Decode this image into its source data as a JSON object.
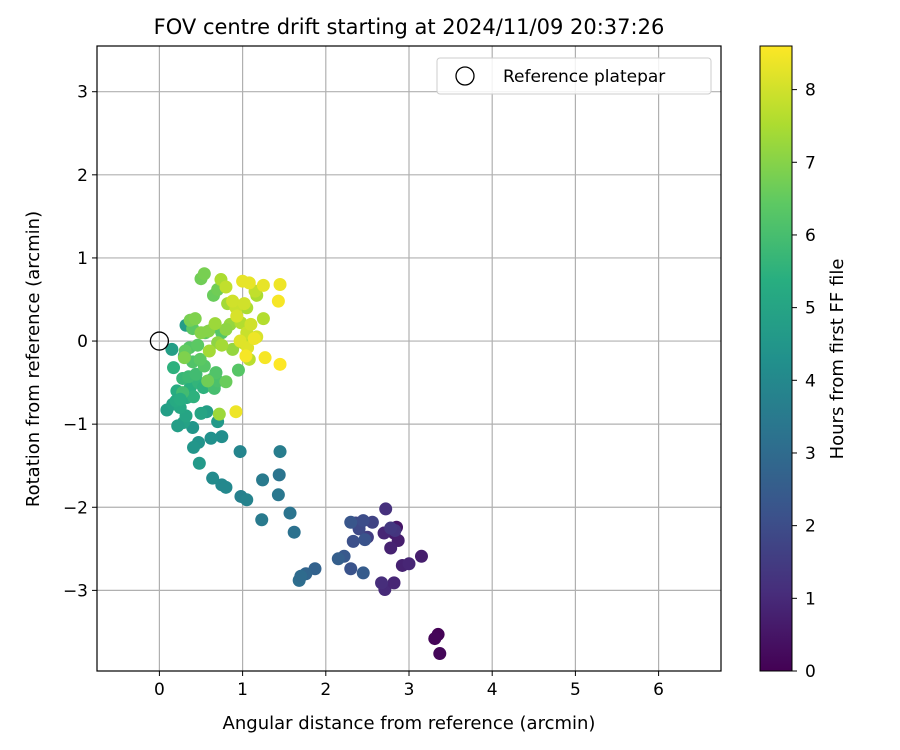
{
  "chart_data": {
    "type": "scatter",
    "title": "FOV centre drift starting at 2024/11/09 20:37:26",
    "xlabel": "Angular distance from reference (arcmin)",
    "ylabel": "Rotation from reference (arcmin)",
    "xlim": [
      -0.75,
      6.75
    ],
    "ylim": [
      -3.97,
      3.55
    ],
    "xticks": [
      0,
      1,
      2,
      3,
      4,
      5,
      6
    ],
    "yticks": [
      3,
      2,
      1,
      0,
      -1,
      -2,
      -3
    ],
    "ytick_labels": [
      "3",
      "2",
      "1",
      "0",
      "−1",
      "−2",
      "−3"
    ],
    "grid": true,
    "legend": {
      "placement": "top-right",
      "label": "Reference platepar"
    },
    "reference_point": {
      "x": 0,
      "y": 0
    },
    "colorbar": {
      "label": "Hours from first FF file",
      "range": [
        0,
        8.6
      ],
      "ticks": [
        0,
        1,
        2,
        3,
        4,
        5,
        6,
        7,
        8
      ],
      "colormap": "viridis"
    },
    "points": [
      [
        3.35,
        -3.53,
        0.05
      ],
      [
        3.31,
        -3.58,
        0.1
      ],
      [
        3.37,
        -3.76,
        0.15
      ],
      [
        2.85,
        -2.24,
        0.5
      ],
      [
        2.82,
        -2.31,
        0.6
      ],
      [
        2.87,
        -2.4,
        0.7
      ],
      [
        2.78,
        -2.49,
        0.8
      ],
      [
        2.7,
        -2.31,
        0.9
      ],
      [
        2.92,
        -2.7,
        0.8
      ],
      [
        3.0,
        -2.68,
        0.9
      ],
      [
        3.15,
        -2.59,
        0.7
      ],
      [
        2.71,
        -2.99,
        1.0
      ],
      [
        2.82,
        -2.91,
        0.9
      ],
      [
        2.67,
        -2.91,
        1.1
      ],
      [
        2.72,
        -2.02,
        1.2
      ],
      [
        2.83,
        -2.28,
        1.3
      ],
      [
        2.78,
        -2.25,
        1.4
      ],
      [
        2.5,
        -2.36,
        1.5
      ],
      [
        2.56,
        -2.18,
        1.7
      ],
      [
        2.36,
        -2.19,
        1.8
      ],
      [
        2.4,
        -2.26,
        1.9
      ],
      [
        2.45,
        -2.16,
        2.0
      ],
      [
        2.33,
        -2.41,
        2.1
      ],
      [
        2.47,
        -2.39,
        2.2
      ],
      [
        2.3,
        -2.18,
        2.3
      ],
      [
        2.22,
        -2.59,
        2.4
      ],
      [
        2.3,
        -2.74,
        2.2
      ],
      [
        2.45,
        -2.79,
        2.5
      ],
      [
        2.15,
        -2.62,
        2.6
      ],
      [
        1.87,
        -2.74,
        2.7
      ],
      [
        1.76,
        -2.8,
        2.8
      ],
      [
        1.68,
        -2.88,
        3.1
      ],
      [
        1.7,
        -2.83,
        3.0
      ],
      [
        1.62,
        -2.3,
        3.2
      ],
      [
        1.57,
        -2.07,
        3.3
      ],
      [
        1.43,
        -1.85,
        3.4
      ],
      [
        1.24,
        -1.67,
        3.5
      ],
      [
        1.44,
        -1.61,
        3.3
      ],
      [
        1.45,
        -1.33,
        3.6
      ],
      [
        1.23,
        -2.15,
        3.5
      ],
      [
        0.98,
        -1.87,
        3.7
      ],
      [
        1.05,
        -1.91,
        3.8
      ],
      [
        0.97,
        -1.33,
        3.9
      ],
      [
        0.75,
        -1.73,
        4.0
      ],
      [
        0.64,
        -1.65,
        4.1
      ],
      [
        0.8,
        -1.76,
        4.0
      ],
      [
        0.75,
        -1.15,
        4.2
      ],
      [
        0.62,
        -1.17,
        4.3
      ],
      [
        0.47,
        -1.22,
        4.4
      ],
      [
        0.41,
        -1.28,
        4.5
      ],
      [
        0.48,
        -1.47,
        4.6
      ],
      [
        0.4,
        -1.04,
        4.5
      ],
      [
        0.7,
        -0.97,
        4.6
      ],
      [
        0.57,
        -0.85,
        4.8
      ],
      [
        0.29,
        -0.98,
        4.9
      ],
      [
        0.22,
        -1.02,
        4.8
      ],
      [
        0.09,
        -0.83,
        4.8
      ],
      [
        0.16,
        -0.76,
        4.9
      ],
      [
        0.32,
        -0.9,
        5.0
      ],
      [
        0.5,
        -0.87,
        5.0
      ],
      [
        0.3,
        -0.18,
        4.7
      ],
      [
        0.32,
        0.19,
        4.7
      ],
      [
        0.15,
        -0.1,
        4.8
      ],
      [
        0.25,
        -0.8,
        5.1
      ],
      [
        0.33,
        -0.68,
        5.2
      ],
      [
        0.21,
        -0.6,
        5.3
      ],
      [
        0.37,
        -0.56,
        5.4
      ],
      [
        0.41,
        -0.67,
        5.5
      ],
      [
        0.47,
        -0.5,
        5.6
      ],
      [
        0.53,
        -0.56,
        5.5
      ],
      [
        0.28,
        -0.45,
        5.7
      ],
      [
        0.35,
        -0.43,
        5.8
      ],
      [
        0.17,
        -0.32,
        5.5
      ],
      [
        0.28,
        -0.62,
        5.9
      ],
      [
        0.66,
        -0.57,
        6.0
      ],
      [
        0.63,
        -0.46,
        6.0
      ],
      [
        0.44,
        -0.4,
        5.9
      ],
      [
        0.2,
        -0.72,
        5.2
      ],
      [
        0.25,
        -0.7,
        5.3
      ],
      [
        0.7,
        -0.48,
        6.1
      ],
      [
        0.68,
        -0.38,
        6.2
      ],
      [
        0.54,
        -0.3,
        6.3
      ],
      [
        0.4,
        -0.25,
        6.2
      ],
      [
        0.36,
        -0.08,
        6.3
      ],
      [
        0.46,
        -0.05,
        6.4
      ],
      [
        0.31,
        -0.12,
        6.5
      ],
      [
        0.49,
        -0.22,
        6.4
      ],
      [
        0.55,
        0.1,
        6.4
      ],
      [
        0.66,
        0.17,
        6.5
      ],
      [
        0.4,
        0.15,
        6.4
      ],
      [
        0.75,
        0.1,
        6.3
      ],
      [
        0.95,
        -0.35,
        6.3
      ],
      [
        0.8,
        -0.49,
        6.6
      ],
      [
        0.58,
        -0.48,
        6.7
      ],
      [
        0.65,
        0.55,
        6.6
      ],
      [
        0.7,
        0.62,
        6.7
      ],
      [
        0.5,
        0.75,
        6.7
      ],
      [
        0.54,
        0.81,
        6.8
      ],
      [
        0.37,
        0.25,
        6.8
      ],
      [
        0.43,
        0.27,
        6.9
      ],
      [
        0.3,
        -0.2,
        6.9
      ],
      [
        0.5,
        0.1,
        7.0
      ],
      [
        0.59,
        0.12,
        7.0
      ],
      [
        0.7,
        -0.02,
        7.1
      ],
      [
        0.85,
        0.2,
        7.2
      ],
      [
        0.8,
        0.14,
        7.1
      ],
      [
        0.88,
        -0.1,
        7.2
      ],
      [
        0.72,
        -0.88,
        7.3
      ],
      [
        0.67,
        0.21,
        7.3
      ],
      [
        0.6,
        -0.12,
        7.4
      ],
      [
        0.75,
        -0.05,
        7.4
      ],
      [
        0.82,
        0.45,
        7.4
      ],
      [
        0.74,
        0.74,
        7.5
      ],
      [
        1.17,
        0.55,
        7.5
      ],
      [
        1.05,
        0.4,
        7.5
      ],
      [
        1.25,
        0.27,
        7.6
      ],
      [
        0.98,
        0.22,
        7.6
      ],
      [
        1.08,
        -0.22,
        7.7
      ],
      [
        1.0,
        -0.02,
        7.7
      ],
      [
        1.15,
        0.6,
        7.8
      ],
      [
        0.8,
        0.65,
        7.8
      ],
      [
        0.92,
        0.4,
        7.9
      ],
      [
        1.05,
        0.1,
        7.9
      ],
      [
        0.88,
        0.48,
        8.0
      ],
      [
        1.02,
        0.45,
        8.0
      ],
      [
        1.1,
        0.2,
        8.0
      ],
      [
        0.93,
        0.3,
        8.1
      ],
      [
        1.17,
        0.05,
        8.1
      ],
      [
        0.97,
        0.0,
        8.2
      ],
      [
        1.06,
        -0.08,
        8.2
      ],
      [
        1.08,
        0.7,
        8.3
      ],
      [
        1.0,
        0.72,
        8.3
      ],
      [
        1.25,
        0.67,
        8.3
      ],
      [
        1.45,
        0.68,
        8.4
      ],
      [
        1.27,
        -0.2,
        8.5
      ],
      [
        1.45,
        -0.28,
        8.6
      ],
      [
        1.43,
        0.48,
        8.5
      ],
      [
        0.92,
        -0.85,
        8.4
      ],
      [
        1.14,
        0.03,
        8.4
      ],
      [
        1.04,
        -0.18,
        8.5
      ]
    ]
  }
}
